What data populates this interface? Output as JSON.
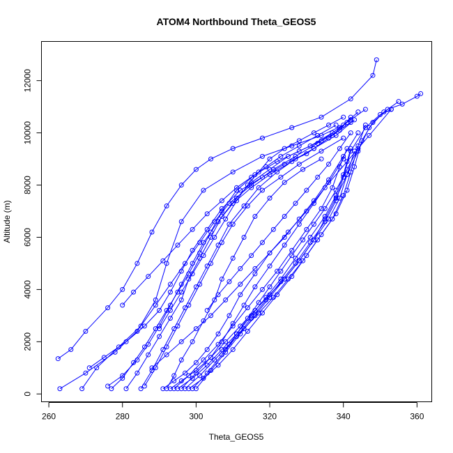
{
  "chart_data": {
    "type": "line",
    "title": "ATOM4 Northbound Theta_GEOS5",
    "xlabel": "Theta_GEOS5",
    "ylabel": "Altitude (m)",
    "xlim": [
      258,
      364
    ],
    "ylim": [
      -300,
      13500
    ],
    "x_ticks": [
      260,
      280,
      300,
      320,
      340,
      360
    ],
    "y_ticks": [
      0,
      2000,
      4000,
      6000,
      8000,
      10000,
      12000
    ],
    "x_tick_labels": [
      "260",
      "280",
      "300",
      "320",
      "340",
      "360"
    ],
    "y_tick_labels": [
      "0",
      "2000",
      "4000",
      "6000",
      "8000",
      "10000",
      "12000"
    ],
    "grid": false,
    "marker": "open-circle",
    "series_color": "#0000ff",
    "series": [
      {
        "x": [
          262.5,
          266,
          270,
          276,
          280,
          284,
          288,
          292,
          296,
          300,
          304,
          310,
          318,
          326,
          334,
          342,
          348,
          349
        ],
        "y": [
          1350,
          1700,
          2400,
          3300,
          4000,
          5000,
          6200,
          7200,
          8000,
          8600,
          9000,
          9400,
          9800,
          10200,
          10600,
          11300,
          12200,
          12800
        ]
      },
      {
        "x": [
          263,
          270,
          278,
          284,
          289,
          292,
          296,
          302,
          310,
          318,
          326,
          334,
          340,
          344
        ],
        "y": [
          200,
          800,
          1600,
          2400,
          3600,
          5000,
          6600,
          7800,
          8500,
          9100,
          9500,
          9900,
          10300,
          10800
        ]
      },
      {
        "x": [
          269,
          273,
          279,
          285,
          289,
          293,
          297,
          301,
          305,
          309,
          315,
          321,
          327,
          333,
          339,
          342
        ],
        "y": [
          200,
          1000,
          1800,
          2600,
          3400,
          4200,
          5000,
          5800,
          6600,
          7300,
          8000,
          8600,
          9100,
          9600,
          10100,
          10600
        ]
      },
      {
        "x": [
          271,
          275,
          281,
          286,
          290,
          293,
          296,
          299,
          303,
          307,
          312,
          318,
          324,
          330,
          336,
          341
        ],
        "y": [
          1000,
          1400,
          2000,
          2600,
          3200,
          3900,
          4700,
          5500,
          6300,
          7100,
          7800,
          8300,
          8800,
          9200,
          9800,
          10400
        ]
      },
      {
        "x": [
          276,
          280,
          284,
          287,
          290,
          293,
          296,
          299,
          302,
          306,
          310,
          315,
          320,
          326,
          332,
          338,
          343
        ],
        "y": [
          300,
          700,
          1300,
          1900,
          2600,
          3400,
          4200,
          5000,
          5800,
          6600,
          7300,
          7900,
          8400,
          8900,
          9400,
          9900,
          10500
        ]
      },
      {
        "x": [
          277,
          280,
          283,
          286,
          289,
          292,
          295,
          298,
          301,
          304,
          307,
          311,
          316,
          322,
          328,
          334,
          339
        ],
        "y": [
          200,
          600,
          1200,
          1800,
          2500,
          3200,
          3900,
          4600,
          5400,
          6200,
          7000,
          7800,
          8400,
          8900,
          9300,
          9700,
          10200
        ]
      },
      {
        "x": [
          281,
          284,
          287,
          290,
          293,
          296,
          298,
          301,
          304,
          307,
          311,
          315,
          320,
          325,
          331,
          337,
          342,
          346
        ],
        "y": [
          200,
          800,
          1500,
          2200,
          2900,
          3600,
          4400,
          5200,
          6000,
          6800,
          7500,
          8100,
          8600,
          9100,
          9500,
          10000,
          10500,
          10900
        ]
      },
      {
        "x": [
          285,
          288,
          291,
          294,
          297,
          300,
          303,
          306,
          309,
          313,
          317,
          322,
          327,
          332,
          337,
          342
        ],
        "y": [
          200,
          900,
          1700,
          2500,
          3300,
          4100,
          4900,
          5700,
          6500,
          7200,
          7900,
          8500,
          9000,
          9400,
          9900,
          10400
        ]
      },
      {
        "x": [
          286,
          289,
          292,
          295,
          298,
          301,
          304,
          307,
          310,
          314,
          318,
          323,
          328,
          334,
          340
        ],
        "y": [
          300,
          1000,
          1800,
          2600,
          3400,
          4200,
          5000,
          5800,
          6500,
          7200,
          7800,
          8300,
          8800,
          9300,
          9800
        ]
      },
      {
        "x": [
          280,
          283,
          287,
          291,
          295,
          299,
          303,
          307,
          311,
          315,
          319,
          323,
          328,
          333,
          338
        ],
        "y": [
          3400,
          3900,
          4500,
          5100,
          5700,
          6300,
          6900,
          7400,
          7900,
          8300,
          8700,
          9100,
          9500,
          9900,
          10300
        ]
      },
      {
        "x": [
          290,
          293,
          296,
          299,
          302,
          305,
          308,
          311,
          314,
          317,
          320,
          324,
          328,
          332,
          336,
          340
        ],
        "y": [
          2500,
          3200,
          3900,
          4600,
          5300,
          6000,
          6700,
          7400,
          8000,
          8500,
          9000,
          9400,
          9700,
          10000,
          10300,
          10600
        ]
      },
      {
        "x": [
          292,
          294,
          296,
          299,
          302,
          305,
          307,
          310,
          313,
          316,
          320,
          324,
          329,
          334
        ],
        "y": [
          200,
          700,
          1300,
          2000,
          2800,
          3600,
          4400,
          5200,
          6000,
          6800,
          7500,
          8100,
          8600,
          9000
        ]
      },
      {
        "x": [
          293,
          296,
          300,
          304,
          307,
          310,
          313,
          316,
          320,
          324,
          328,
          332,
          336,
          340
        ],
        "y": [
          200,
          500,
          900,
          1400,
          2000,
          2700,
          3400,
          4100,
          4900,
          5700,
          6500,
          7300,
          8100,
          9000
        ]
      },
      {
        "x": [
          294,
          298,
          302,
          306,
          310,
          314,
          318,
          322,
          326,
          330,
          334,
          337,
          339,
          341
        ],
        "y": [
          200,
          700,
          1300,
          1900,
          2600,
          3300,
          4000,
          4700,
          5500,
          6300,
          7100,
          7900,
          8700,
          9400
        ]
      },
      {
        "x": [
          295,
          299,
          303,
          307,
          311,
          315,
          319,
          323,
          327,
          331,
          335,
          338,
          340,
          342
        ],
        "y": [
          200,
          600,
          1100,
          1700,
          2300,
          3000,
          3700,
          4400,
          5200,
          6000,
          6800,
          7600,
          8400,
          9400
        ]
      },
      {
        "x": [
          296,
          300,
          304,
          308,
          312,
          316,
          320,
          324,
          328,
          332,
          336,
          339,
          341,
          343
        ],
        "y": [
          200,
          800,
          1400,
          2000,
          2600,
          3200,
          3800,
          4400,
          5100,
          5900,
          6700,
          7500,
          8400,
          9300
        ]
      },
      {
        "x": [
          297,
          301,
          305,
          309,
          313,
          317,
          321,
          325,
          329,
          333,
          337,
          340,
          342,
          344,
          346
        ],
        "y": [
          200,
          700,
          1300,
          1900,
          2500,
          3100,
          3700,
          4400,
          5100,
          5900,
          6700,
          7600,
          8500,
          9500,
          10300
        ]
      },
      {
        "x": [
          298,
          302,
          306,
          310,
          314,
          318,
          322,
          326,
          330,
          334,
          338,
          341,
          343,
          345,
          348,
          352,
          356,
          360,
          361
        ],
        "y": [
          200,
          600,
          1100,
          1700,
          2400,
          3100,
          3800,
          4500,
          5300,
          6100,
          6900,
          7800,
          8700,
          9700,
          10400,
          10900,
          11100,
          11400,
          11500
        ]
      },
      {
        "x": [
          299,
          303,
          307,
          311,
          315,
          319,
          323,
          327,
          331,
          335,
          338,
          340,
          342,
          346,
          350,
          353
        ],
        "y": [
          200,
          800,
          1500,
          2200,
          2900,
          3600,
          4300,
          5000,
          5800,
          6600,
          7400,
          8300,
          9300,
          10200,
          10700,
          10900
        ]
      },
      {
        "x": [
          300,
          304,
          308,
          312,
          316,
          320,
          324,
          328,
          332,
          335,
          338,
          341,
          344,
          347,
          351,
          355
        ],
        "y": [
          200,
          900,
          1600,
          2300,
          3000,
          3700,
          4400,
          5100,
          5900,
          6700,
          7500,
          8400,
          9300,
          10200,
          10800,
          11200
        ]
      },
      {
        "x": [
          291,
          294,
          297,
          300,
          303,
          306,
          309,
          312,
          316,
          320,
          325,
          330,
          335,
          341,
          347,
          353
        ],
        "y": [
          200,
          500,
          800,
          1200,
          1700,
          2300,
          3000,
          3800,
          4600,
          5400,
          6200,
          7000,
          7900,
          8900,
          9900,
          10900
        ]
      },
      {
        "x": [
          303,
          306,
          309,
          312,
          315,
          318,
          321,
          324,
          327,
          330,
          333,
          336,
          339,
          342
        ],
        "y": [
          3200,
          3800,
          4300,
          4800,
          5300,
          5800,
          6300,
          6800,
          7300,
          7800,
          8300,
          8800,
          9400,
          10000
        ]
      },
      {
        "x": [
          308,
          311,
          314,
          317,
          320,
          323,
          326,
          329,
          332,
          335,
          338,
          341,
          344
        ],
        "y": [
          1700,
          2300,
          2900,
          3500,
          4100,
          4700,
          5300,
          5900,
          6500,
          7100,
          7800,
          8600,
          9400
        ]
      },
      {
        "x": [
          288,
          292,
          296,
          300,
          304,
          308,
          312,
          316,
          320,
          324,
          328,
          332,
          336,
          340,
          344
        ],
        "y": [
          1000,
          1500,
          2000,
          2500,
          3000,
          3600,
          4200,
          4800,
          5400,
          6000,
          6700,
          7400,
          8200,
          9100,
          10000
        ]
      }
    ]
  }
}
